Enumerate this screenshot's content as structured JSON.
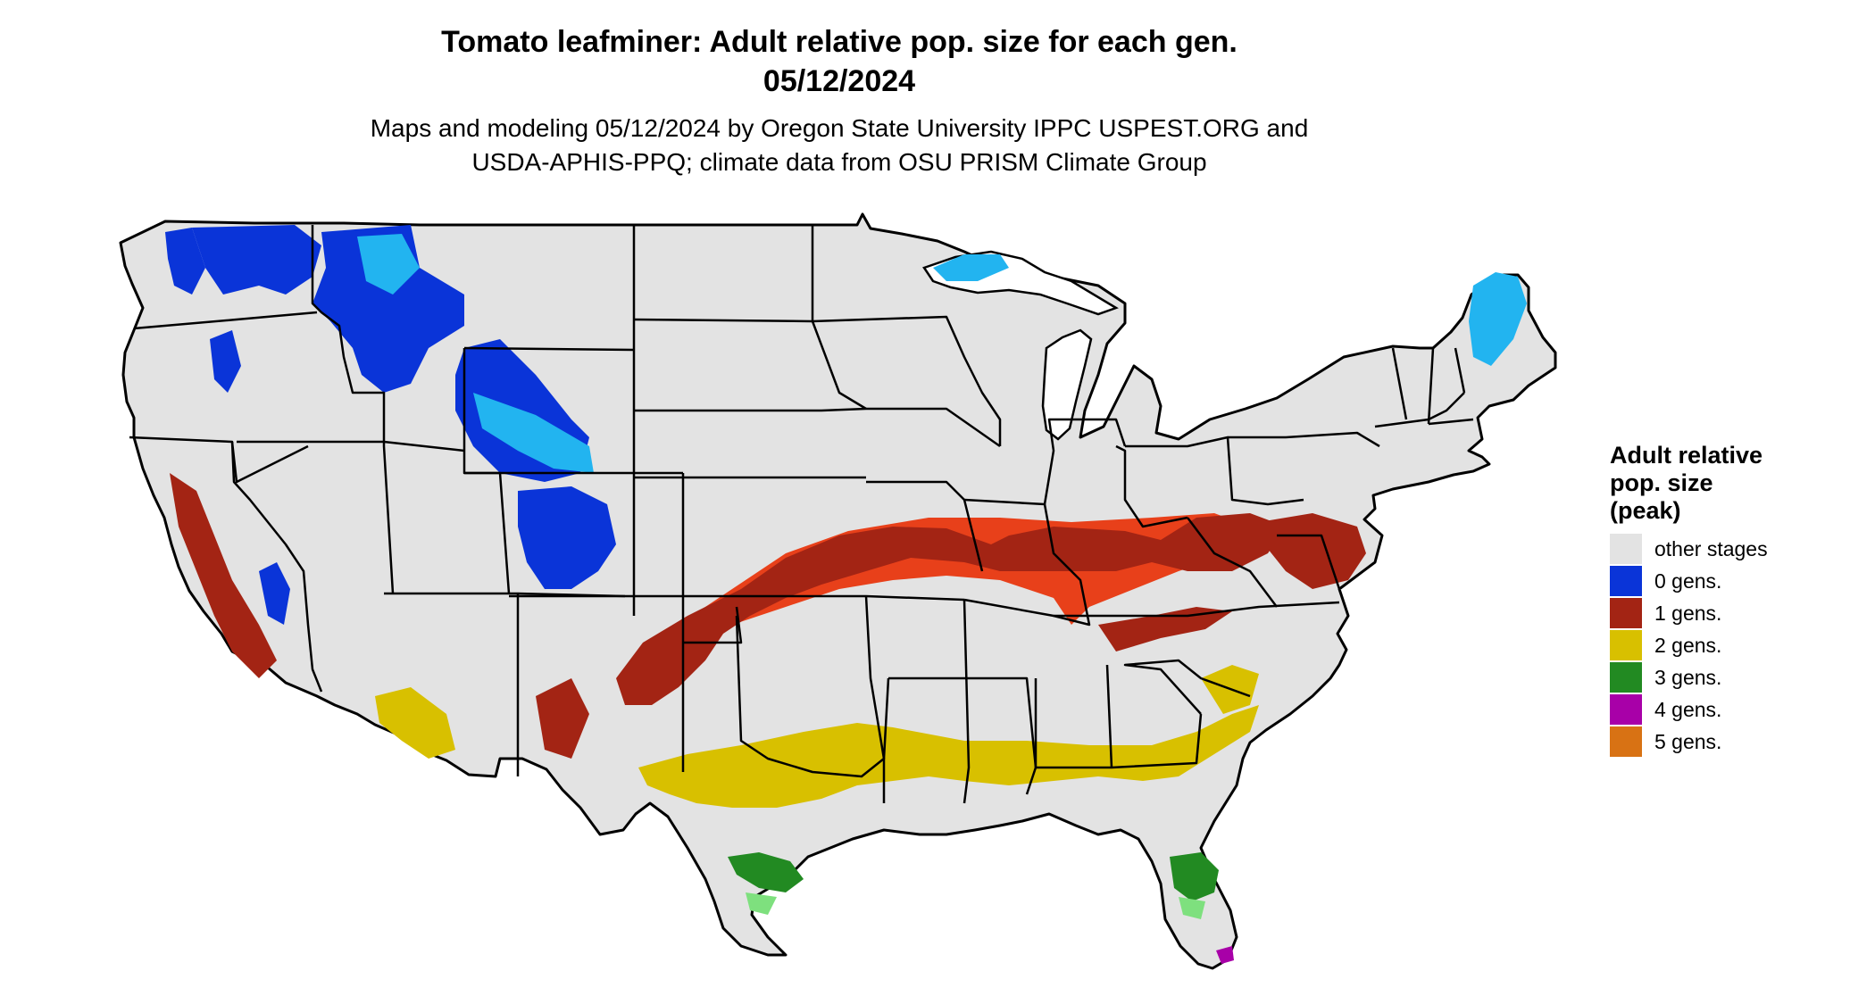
{
  "title": {
    "line1": "Tomato leafminer: Adult relative pop. size for each gen.",
    "line2": "05/12/2024"
  },
  "subtitle": {
    "line1": "Maps and modeling 05/12/2024 by Oregon State University IPPC USPEST.ORG and",
    "line2": "USDA-APHIS-PPQ; climate data from OSU PRISM Climate Group"
  },
  "legend": {
    "title_lines": [
      "Adult relative",
      "pop. size",
      "(peak)"
    ],
    "items": [
      {
        "label": "other stages",
        "color": "#e3e3e3"
      },
      {
        "label": "0 gens.",
        "color": "#0a34d8"
      },
      {
        "label": "1 gens.",
        "color": "#a32414"
      },
      {
        "label": "2 gens.",
        "color": "#d8c000"
      },
      {
        "label": "3 gens.",
        "color": "#228a22"
      },
      {
        "label": "4 gens.",
        "color": "#a800a8"
      },
      {
        "label": "5 gens.",
        "color": "#d87214"
      }
    ]
  },
  "map": {
    "background_color": "#e3e3e3",
    "border_color": "#000000",
    "region": "Contiguous United States",
    "zones": [
      {
        "name": "0 gens. (mountain West / northern lakes / northern Maine)",
        "color": "#0a34d8"
      },
      {
        "name": "0 gens. light",
        "color": "#22b4f0"
      },
      {
        "name": "1 gens. belt",
        "color": "#a32414"
      },
      {
        "name": "1 gens. light",
        "color": "#e8401a"
      },
      {
        "name": "2 gens. southern belt",
        "color": "#d8c000"
      },
      {
        "name": "3 gens. Gulf coast / south Florida",
        "color": "#228a22"
      },
      {
        "name": "3 gens. light",
        "color": "#7ee07e"
      },
      {
        "name": "4 gens. Florida tip",
        "color": "#a800a8"
      }
    ]
  }
}
